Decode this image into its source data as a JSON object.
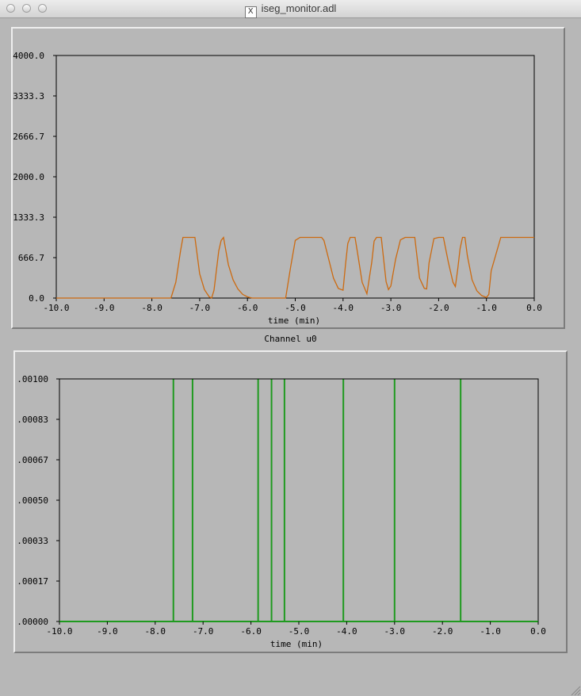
{
  "window": {
    "title": "iseg_monitor.adl",
    "x_glyph": "X"
  },
  "colors": {
    "top_trace": "#cc6a10",
    "bottom_trace": "#1f9a1f",
    "background": "#b7b7b7"
  },
  "charts": {
    "top": {
      "xlabel": "time (min)",
      "x_ticks": [
        "-10.0",
        "-9.0",
        "-8.0",
        "-7.0",
        "-6.0",
        "-5.0",
        "-4.0",
        "-3.0",
        "-2.0",
        "-1.0",
        "0.0"
      ],
      "y_ticks": [
        "0.0",
        "666.7",
        "1333.3",
        "2000.0",
        "2666.7",
        "3333.3",
        "4000.0"
      ]
    },
    "middle_caption": "Channel u0",
    "bottom": {
      "xlabel": "time (min)",
      "x_ticks": [
        "-10.0",
        "-9.0",
        "-8.0",
        "-7.0",
        "-6.0",
        "-5.0",
        "-4.0",
        "-3.0",
        "-2.0",
        "-1.0",
        "0.0"
      ],
      "y_ticks": [
        ").00000",
        ").00017",
        ").00033",
        ").00050",
        ").00067",
        ").00083",
        ").00100"
      ]
    }
  },
  "chart_data": [
    {
      "type": "line",
      "xlabel": "time (min)",
      "ylabel": "",
      "xlim": [
        -10,
        0
      ],
      "ylim": [
        0,
        4000
      ],
      "series": [
        {
          "color": "#cc6a10",
          "x": [
            -10.0,
            -7.6,
            -7.5,
            -7.4,
            -7.35,
            -7.1,
            -7.0,
            -6.9,
            -6.8,
            -6.75,
            -6.7,
            -6.6,
            -6.55,
            -6.5,
            -6.4,
            -6.3,
            -6.2,
            -6.1,
            -6.0,
            -5.9,
            -5.2,
            -5.1,
            -5.0,
            -4.9,
            -4.45,
            -4.4,
            -4.3,
            -4.2,
            -4.1,
            -4.0,
            -3.95,
            -3.9,
            -3.85,
            -3.75,
            -3.7,
            -3.6,
            -3.5,
            -3.4,
            -3.35,
            -3.3,
            -3.2,
            -3.1,
            -3.05,
            -3.0,
            -2.9,
            -2.8,
            -2.7,
            -2.65,
            -2.6,
            -2.5,
            -2.4,
            -2.3,
            -2.25,
            -2.2,
            -2.1,
            -2.0,
            -1.95,
            -1.9,
            -1.8,
            -1.7,
            -1.65,
            -1.6,
            -1.55,
            -1.5,
            -1.45,
            -1.4,
            -1.3,
            -1.2,
            -1.1,
            -1.0,
            -0.95,
            -0.9,
            -0.7,
            0.0
          ],
          "y": [
            0,
            0,
            260,
            780,
            1000,
            1000,
            400,
            140,
            20,
            0,
            130,
            780,
            950,
            1000,
            550,
            300,
            150,
            60,
            20,
            0,
            0,
            500,
            950,
            1000,
            1000,
            950,
            640,
            330,
            160,
            130,
            540,
            900,
            1000,
            1000,
            760,
            260,
            70,
            590,
            940,
            1000,
            1000,
            270,
            140,
            200,
            640,
            960,
            1000,
            1000,
            1000,
            1000,
            330,
            160,
            150,
            580,
            980,
            1000,
            1000,
            1000,
            600,
            260,
            190,
            480,
            820,
            1000,
            1000,
            700,
            300,
            120,
            40,
            10,
            60,
            450,
            1000,
            1000
          ]
        }
      ]
    },
    {
      "type": "line",
      "xlabel": "time (min)",
      "ylabel": "",
      "xlim": [
        -10,
        0
      ],
      "ylim": [
        0,
        0.001
      ],
      "series": [
        {
          "color": "#1f9a1f",
          "spikes": [
            {
              "x": -7.62,
              "y": 0.001
            },
            {
              "x": -7.22,
              "y": 0.001
            },
            {
              "x": -5.85,
              "y": 0.001
            },
            {
              "x": -5.57,
              "y": 0.001
            },
            {
              "x": -5.3,
              "y": 0.001
            },
            {
              "x": -4.07,
              "y": 0.001
            },
            {
              "x": -3.0,
              "y": 0.001
            },
            {
              "x": -1.62,
              "y": 0.001
            }
          ]
        }
      ]
    }
  ]
}
